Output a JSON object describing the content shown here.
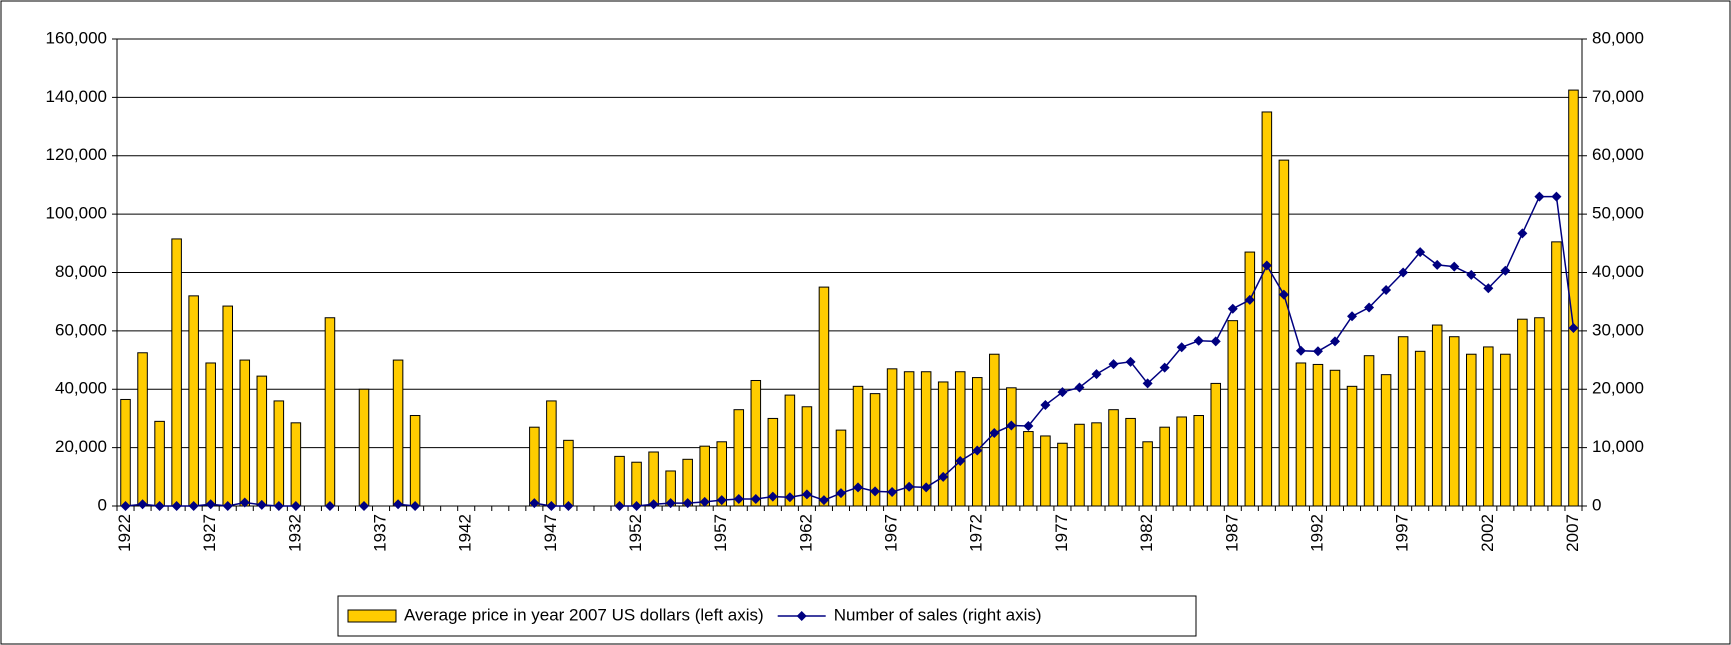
{
  "chart_data": {
    "type": "bar-line",
    "categories": [
      "1922",
      null,
      null,
      null,
      null,
      "1927",
      null,
      null,
      null,
      null,
      "1932",
      null,
      null,
      null,
      null,
      "1937",
      null,
      null,
      null,
      null,
      "1942",
      null,
      null,
      null,
      null,
      "1947",
      null,
      null,
      null,
      null,
      "1952",
      null,
      null,
      null,
      null,
      "1957",
      null,
      null,
      null,
      null,
      "1962",
      null,
      null,
      null,
      null,
      "1967",
      null,
      null,
      null,
      null,
      "1972",
      null,
      null,
      null,
      null,
      "1977",
      null,
      null,
      null,
      null,
      "1982",
      null,
      null,
      null,
      null,
      "1987",
      null,
      null,
      null,
      null,
      "1992",
      null,
      null,
      null,
      null,
      "1997",
      null,
      null,
      null,
      null,
      "2002",
      null,
      null,
      null,
      null,
      "2007"
    ],
    "series": [
      {
        "name": "Average price in year 2007 US dollars (left axis)",
        "type": "bar",
        "color": "#ffcc00",
        "axis": "y",
        "values": [
          36500,
          52500,
          29000,
          91500,
          72000,
          49000,
          68500,
          50000,
          44500,
          36000,
          28500,
          null,
          64500,
          null,
          40000,
          null,
          50000,
          31000,
          null,
          null,
          null,
          null,
          null,
          null,
          27000,
          36000,
          22500,
          null,
          null,
          17000,
          15000,
          18500,
          12000,
          16000,
          20500,
          22000,
          33000,
          43000,
          30000,
          38000,
          34000,
          75000,
          26000,
          41000,
          38500,
          47000,
          46000,
          46000,
          42500,
          46000,
          44000,
          52000,
          40500,
          25500,
          24000,
          21500,
          28000,
          28500,
          33000,
          30000,
          22000,
          27000,
          30500,
          31000,
          42000,
          63500,
          87000,
          135000,
          118500,
          49000,
          48500,
          46500,
          41000,
          51500,
          45000,
          58000,
          53000,
          62000,
          58000,
          52000,
          54500,
          52000,
          64000,
          64500,
          90500,
          142500
        ]
      },
      {
        "name": "Number of sales (right axis)",
        "type": "line",
        "color": "#000080",
        "axis": "y2",
        "values": [
          0,
          300,
          0,
          0,
          0,
          300,
          0,
          600,
          200,
          0,
          0,
          null,
          0,
          null,
          0,
          null,
          300,
          0,
          null,
          null,
          null,
          null,
          null,
          null,
          500,
          0,
          0,
          null,
          null,
          0,
          0,
          300,
          500,
          500,
          700,
          1000,
          1200,
          1200,
          1600,
          1500,
          2000,
          1000,
          2200,
          3200,
          2500,
          2400,
          3300,
          3200,
          5000,
          7700,
          9500,
          12500,
          13800,
          13700,
          17300,
          19500,
          20300,
          22600,
          24300,
          24700,
          21000,
          23700,
          27200,
          28300,
          28200,
          33800,
          35300,
          41200,
          36200,
          26600,
          26500,
          28200,
          32500,
          34000,
          37000,
          40000,
          43500,
          41300,
          41000,
          39600,
          37300,
          40300,
          46700,
          53000,
          53000,
          30500
        ]
      }
    ],
    "ylim": [
      0,
      160000
    ],
    "yticks": [
      0,
      {
        "value": 20000,
        "label": "20,000"
      },
      {
        "value": 40000,
        "label": "40,000"
      },
      {
        "value": 60000,
        "label": "60,000"
      },
      {
        "value": 80000,
        "label": "80,000"
      },
      {
        "value": 100000,
        "label": "100,000"
      },
      {
        "value": 120000,
        "label": "120,000"
      },
      {
        "value": 140000,
        "label": "140,000"
      },
      {
        "value": 160000,
        "label": "160,000"
      }
    ],
    "y2lim": [
      0,
      80000
    ],
    "y2ticks": [
      0,
      {
        "value": 10000,
        "label": "10,000"
      },
      {
        "value": 20000,
        "label": "20,000"
      },
      {
        "value": 30000,
        "label": "30,000"
      },
      {
        "value": 40000,
        "label": "40,000"
      },
      {
        "value": 50000,
        "label": "50,000"
      },
      {
        "value": 60000,
        "label": "60,000"
      },
      {
        "value": 70000,
        "label": "70,000"
      },
      {
        "value": 80000,
        "label": "80,000"
      }
    ],
    "grid": true,
    "legend": "bottom"
  }
}
